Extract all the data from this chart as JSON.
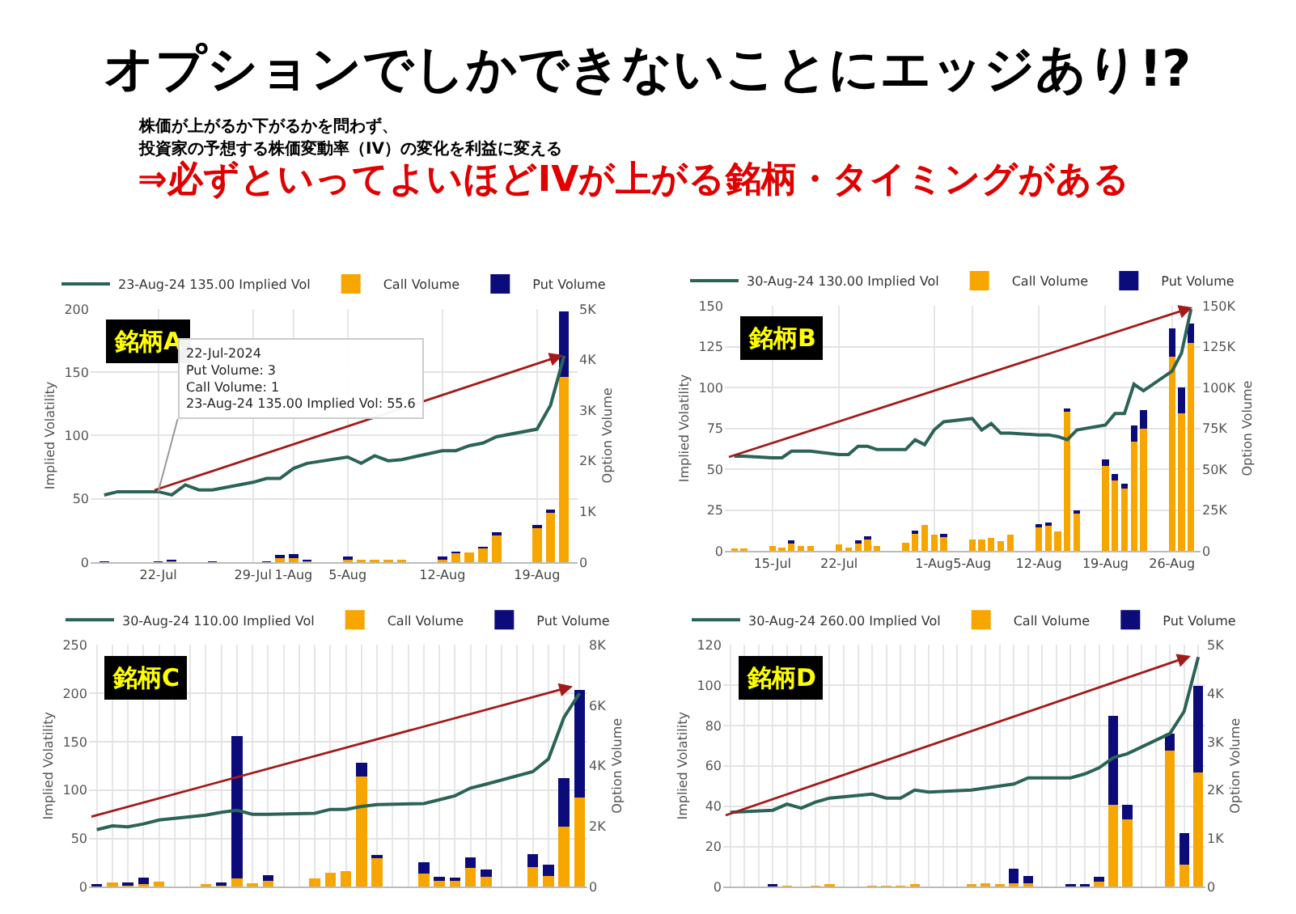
{
  "chart_data": [
    {
      "type": "bar",
      "title": "銘柄A",
      "ylabel": "Implied Volatility",
      "y2label": "Option Volume",
      "stacked": true,
      "grid": true,
      "legend": "top",
      "marker": "none",
      "annotations": [
        "オプションでしかできないことにエッジあり!?",
        "株価が上がるか下がるかを問わず、",
        "投資家の予想する株価変動率（IV）の変化を利益に変える",
        "⇒必ずといってよいほどIVが上がる銘柄・タイミングがある",
        {
          "text": "22-Jul-2024\nPut Volume: 3\nCall Volume: 1\n23-Aug-24 135.00 Implied Vol: 55.6",
          "x": "2024-07-22",
          "y": 55.6
        }
      ],
      "x": [
        "2024-07-18",
        "2024-07-19",
        "2024-07-22",
        "2024-07-23",
        "2024-07-24",
        "2024-07-25",
        "2024-07-26",
        "2024-07-29",
        "2024-07-30",
        "2024-07-31",
        "2024-08-01",
        "2024-08-02",
        "2024-08-05",
        "2024-08-06",
        "2024-08-07",
        "2024-08-08",
        "2024-08-09",
        "2024-08-12",
        "2024-08-13",
        "2024-08-14",
        "2024-08-15",
        "2024-08-16",
        "2024-08-19",
        "2024-08-20",
        "2024-08-21"
      ],
      "xlim": [
        "2024-07-17",
        "2024-08-22"
      ],
      "xticks": [
        {
          "value": "2024-07-22",
          "label": "22-Jul"
        },
        {
          "value": "2024-07-29",
          "label": "29-Jul"
        },
        {
          "value": "2024-08-01",
          "label": "1-Aug"
        },
        {
          "value": "2024-08-05",
          "label": "5-Aug"
        },
        {
          "value": "2024-08-12",
          "label": "12-Aug"
        },
        {
          "value": "2024-08-19",
          "label": "19-Aug"
        }
      ],
      "ylim": [
        0,
        200
      ],
      "yticks": [
        0,
        50,
        100,
        150,
        200
      ],
      "y2lim": [
        0,
        5000
      ],
      "y2ticks": [
        0,
        {
          "value": 1000,
          "label": "1K"
        },
        {
          "value": 2000,
          "label": "2K"
        },
        {
          "value": 3000,
          "label": "3K"
        },
        {
          "value": 4000,
          "label": "4K"
        },
        {
          "value": 5000,
          "label": "5K"
        }
      ],
      "series": [
        {
          "name": "23-Aug-24 135.00 Implied Vol",
          "type": "line",
          "color": "#2b6357",
          "values": [
            53,
            55.6,
            55.6,
            53,
            61,
            57,
            57,
            63,
            66,
            66,
            74,
            78,
            83,
            78,
            84,
            80,
            81,
            88,
            88,
            92,
            94,
            99,
            105,
            124,
            163
          ]
        },
        {
          "name": "Call Volume",
          "axis": "y2",
          "color": "#f7a600",
          "values": [
            null,
            null,
            1,
            15,
            null,
            null,
            null,
            null,
            10,
            90,
            100,
            20,
            70,
            40,
            50,
            50,
            50,
            60,
            190,
            190,
            290,
            540,
            670,
            980,
            3660
          ]
        },
        {
          "name": "Put Volume",
          "axis": "y2",
          "color": "#0b0b7a",
          "values": [
            10,
            null,
            3,
            10,
            null,
            null,
            10,
            null,
            5,
            40,
            50,
            10,
            30,
            null,
            null,
            null,
            null,
            50,
            10,
            null,
            10,
            30,
            70,
            60,
            1290
          ]
        }
      ]
    },
    {
      "type": "bar",
      "title": "銘柄B",
      "ylabel": "Implied Volatility",
      "y2label": "Option Volume",
      "stacked": true,
      "grid": true,
      "legend": "top",
      "marker": "none",
      "x": [
        "2024-07-11",
        "2024-07-12",
        "2024-07-15",
        "2024-07-16",
        "2024-07-17",
        "2024-07-18",
        "2024-07-19",
        "2024-07-22",
        "2024-07-23",
        "2024-07-24",
        "2024-07-25",
        "2024-07-26",
        "2024-07-29",
        "2024-07-30",
        "2024-07-31",
        "2024-08-01",
        "2024-08-02",
        "2024-08-05",
        "2024-08-06",
        "2024-08-07",
        "2024-08-08",
        "2024-08-09",
        "2024-08-12",
        "2024-08-13",
        "2024-08-14",
        "2024-08-15",
        "2024-08-16",
        "2024-08-19",
        "2024-08-20",
        "2024-08-21",
        "2024-08-22",
        "2024-08-23",
        "2024-08-26",
        "2024-08-27",
        "2024-08-28"
      ],
      "xlim": [
        "2024-07-10",
        "2024-08-29"
      ],
      "xticks": [
        {
          "value": "2024-07-15",
          "label": "15-Jul"
        },
        {
          "value": "2024-07-22",
          "label": "22-Jul"
        },
        {
          "value": "2024-08-01",
          "label": "1-Aug"
        },
        {
          "value": "2024-08-05",
          "label": "5-Aug"
        },
        {
          "value": "2024-08-12",
          "label": "12-Aug"
        },
        {
          "value": "2024-08-19",
          "label": "19-Aug"
        },
        {
          "value": "2024-08-26",
          "label": "26-Aug"
        }
      ],
      "ylim": [
        0,
        150
      ],
      "yticks": [
        0,
        25,
        50,
        75,
        100,
        125,
        150
      ],
      "y2lim": [
        0,
        150000
      ],
      "y2ticks": [
        0,
        {
          "value": 25000,
          "label": "25K"
        },
        {
          "value": 50000,
          "label": "50K"
        },
        {
          "value": 75000,
          "label": "75K"
        },
        {
          "value": 100000,
          "label": "100K"
        },
        {
          "value": 125000,
          "label": "125K"
        },
        {
          "value": 150000,
          "label": "150K"
        }
      ],
      "series": [
        {
          "name": "30-Aug-24 130.00 Implied Vol",
          "type": "line",
          "color": "#2b6357",
          "values": [
            58,
            58,
            57,
            57,
            61,
            61,
            61,
            59,
            59,
            64,
            64,
            62,
            62,
            68,
            65,
            74,
            79,
            81,
            74,
            78,
            72,
            72,
            71,
            71,
            70,
            68,
            74,
            77,
            84,
            84,
            102,
            98,
            110,
            121,
            148
          ]
        },
        {
          "name": "Call Volume",
          "axis": "y2",
          "color": "#f7a600",
          "values": [
            1000,
            1000,
            3000,
            2000,
            5000,
            3000,
            3000,
            4000,
            2000,
            5000,
            7000,
            3000,
            5000,
            11000,
            16000,
            10000,
            9000,
            7000,
            7000,
            8000,
            6000,
            10000,
            15000,
            16000,
            12000,
            85000,
            23000,
            52000,
            43000,
            38000,
            67000,
            75000,
            119000,
            84000,
            127000
          ]
        },
        {
          "name": "Put Volume",
          "axis": "y2",
          "color": "#0b0b7a",
          "values": [
            null,
            null,
            null,
            null,
            1000,
            null,
            null,
            null,
            null,
            1000,
            2000,
            null,
            null,
            1000,
            null,
            null,
            1000,
            null,
            null,
            null,
            null,
            null,
            1000,
            1000,
            null,
            2000,
            2000,
            4000,
            4000,
            3000,
            10000,
            11000,
            17000,
            16000,
            12000
          ]
        }
      ]
    },
    {
      "type": "bar",
      "title": "銘柄C",
      "ylabel": "Implied Volatility",
      "y2label": "Option Volume",
      "stacked": true,
      "grid": true,
      "legend": "top",
      "marker": "none",
      "tick_labels": "y",
      "categories": [
        null,
        null,
        null,
        null,
        null,
        null,
        null,
        null,
        null,
        null,
        null,
        null,
        null,
        null,
        null,
        null,
        null,
        null,
        null,
        null,
        null,
        null,
        null,
        null,
        null,
        null,
        null,
        null,
        null,
        null,
        null,
        null
      ],
      "ylim": [
        0,
        250
      ],
      "yticks": [
        0,
        50,
        100,
        150,
        200,
        250
      ],
      "y2lim": [
        0,
        8000
      ],
      "y2ticks": [
        0,
        {
          "value": 2000,
          "label": "2K"
        },
        {
          "value": 4000,
          "label": "4K"
        },
        {
          "value": 6000,
          "label": "6K"
        },
        {
          "value": 8000,
          "label": "8K"
        }
      ],
      "series": [
        {
          "name": "30-Aug-24 110.00 Implied Vol",
          "type": "line",
          "color": "#2b6357",
          "values": [
            59,
            63,
            62,
            65,
            69,
            null,
            null,
            74,
            77,
            79,
            75,
            75,
            null,
            null,
            76,
            80,
            80,
            83,
            85,
            null,
            null,
            86,
            90,
            94,
            102,
            106,
            null,
            null,
            119,
            132,
            175,
            200
          ]
        },
        {
          "name": "Call Volume",
          "axis": "y2",
          "color": "#f7a600",
          "values": [
            null,
            150,
            50,
            100,
            160,
            null,
            null,
            100,
            50,
            290,
            130,
            210,
            null,
            null,
            290,
            470,
            510,
            3660,
            950,
            null,
            null,
            450,
            190,
            190,
            630,
            340,
            null,
            null,
            640,
            350,
            1990,
            2950
          ]
        },
        {
          "name": "Put Volume",
          "axis": "y2",
          "color": "#0b0b7a",
          "values": [
            80,
            null,
            50,
            200,
            null,
            null,
            null,
            null,
            50,
            4690,
            null,
            180,
            null,
            null,
            null,
            null,
            null,
            450,
            80,
            null,
            null,
            370,
            150,
            110,
            350,
            240,
            null,
            null,
            440,
            370,
            1610,
            3570
          ]
        }
      ]
    },
    {
      "type": "bar",
      "title": "銘柄D",
      "ylabel": "Implied Volatility",
      "y2label": "Option Volume",
      "stacked": true,
      "grid": true,
      "legend": "top",
      "marker": "none",
      "tick_labels": "y",
      "categories": [
        null,
        null,
        null,
        null,
        null,
        null,
        null,
        null,
        null,
        null,
        null,
        null,
        null,
        null,
        null,
        null,
        null,
        null,
        null,
        null,
        null,
        null,
        null,
        null,
        null,
        null,
        null,
        null,
        null,
        null,
        null,
        null,
        null,
        null
      ],
      "ylim": [
        0,
        120
      ],
      "yticks": [
        0,
        20,
        40,
        60,
        80,
        100,
        120
      ],
      "y2lim": [
        0,
        5000
      ],
      "y2ticks": [
        0,
        {
          "value": 1000,
          "label": "1K"
        },
        {
          "value": 2000,
          "label": "2K"
        },
        {
          "value": 3000,
          "label": "3K"
        },
        {
          "value": 4000,
          "label": "4K"
        },
        {
          "value": 5000,
          "label": "5K"
        }
      ],
      "series": [
        {
          "name": "30-Aug-24 260.00 Implied Vol",
          "type": "line",
          "color": "#2b6357",
          "values": [
            37,
            null,
            null,
            38,
            41,
            39,
            42,
            44,
            null,
            null,
            46,
            44,
            44,
            48,
            47,
            null,
            null,
            48,
            49,
            50,
            51,
            54,
            null,
            null,
            54,
            56,
            59,
            64,
            66,
            null,
            null,
            76,
            87,
            114
          ]
        },
        {
          "name": "Call Volume",
          "axis": "y2",
          "color": "#f7a600",
          "values": [
            null,
            null,
            null,
            null,
            10,
            null,
            10,
            60,
            null,
            null,
            10,
            10,
            10,
            20,
            null,
            null,
            null,
            40,
            70,
            50,
            80,
            80,
            null,
            null,
            null,
            null,
            100,
            1690,
            1400,
            null,
            null,
            2820,
            460,
            2360
          ]
        },
        {
          "name": "Put Volume",
          "axis": "y2",
          "color": "#0b0b7a",
          "values": [
            null,
            null,
            null,
            20,
            null,
            null,
            null,
            null,
            null,
            null,
            null,
            null,
            null,
            null,
            null,
            null,
            null,
            null,
            null,
            null,
            300,
            150,
            null,
            null,
            20,
            30,
            100,
            1850,
            290,
            null,
            null,
            340,
            650,
            1790
          ]
        }
      ]
    }
  ]
}
